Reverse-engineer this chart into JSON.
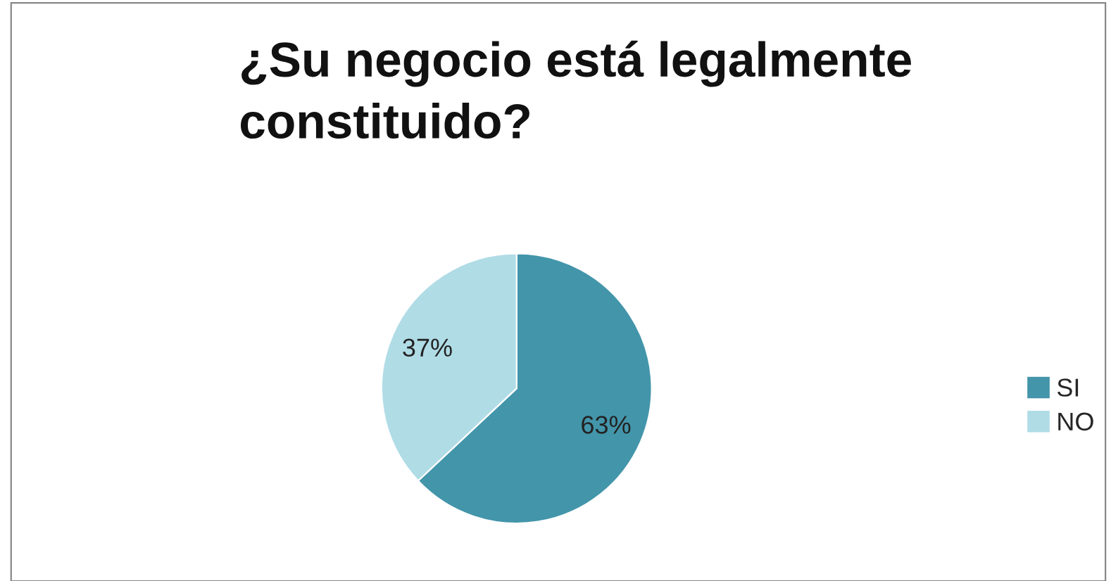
{
  "chart_data": {
    "type": "pie",
    "title": "¿Su negocio está legalmente\nconstituido?",
    "categories": [
      "SI",
      "NO"
    ],
    "values": [
      63,
      37
    ],
    "colors": [
      "#4395aa",
      "#b0dce6"
    ],
    "value_labels": [
      "63%",
      "37%"
    ],
    "legend": "right"
  }
}
